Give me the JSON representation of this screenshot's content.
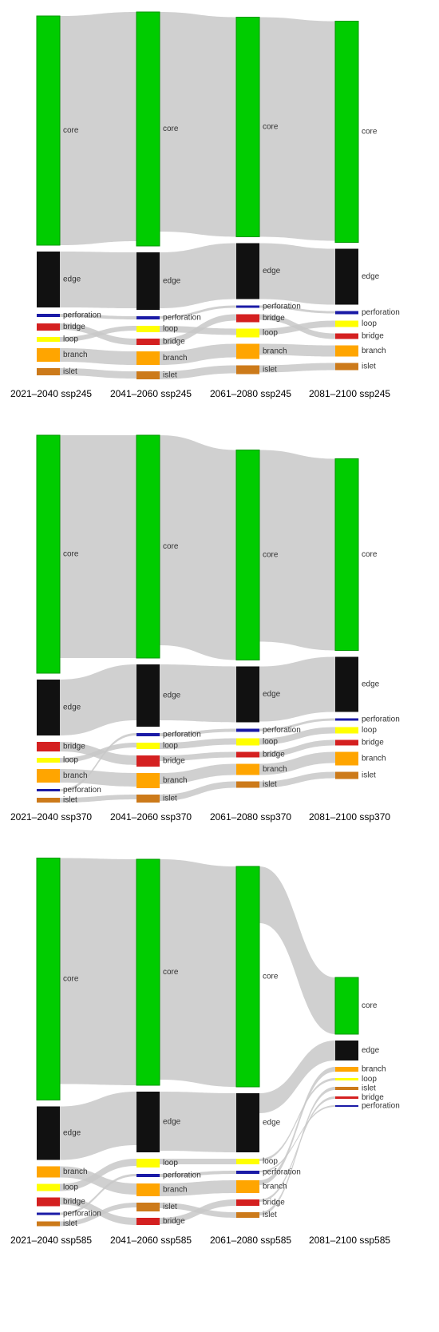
{
  "chart_data": [
    {
      "type": "alluvial",
      "colors": {
        "core": "#00cc00",
        "edge": "#111111",
        "perforation": "#1a1aa6",
        "bridge": "#d42020",
        "loop": "#ffff00",
        "branch": "#ffa500",
        "islet": "#cc7a1a"
      },
      "columns": [
        {
          "label": "2021–2040 ssp245",
          "nodes": [
            {
              "name": "core",
              "value": 287
            },
            {
              "name": "edge",
              "value": 70
            },
            {
              "name": "perforation",
              "value": 4
            },
            {
              "name": "bridge",
              "value": 9
            },
            {
              "name": "loop",
              "value": 6
            },
            {
              "name": "branch",
              "value": 17
            },
            {
              "name": "islet",
              "value": 9
            }
          ]
        },
        {
          "label": "2041–2060 ssp245",
          "nodes": [
            {
              "name": "core",
              "value": 293
            },
            {
              "name": "edge",
              "value": 72
            },
            {
              "name": "perforation",
              "value": 4
            },
            {
              "name": "loop",
              "value": 8
            },
            {
              "name": "bridge",
              "value": 8
            },
            {
              "name": "branch",
              "value": 17
            },
            {
              "name": "islet",
              "value": 10
            }
          ]
        },
        {
          "label": "2061–2080 ssp245",
          "nodes": [
            {
              "name": "core",
              "value": 275
            },
            {
              "name": "edge",
              "value": 70
            },
            {
              "name": "perforation",
              "value": 3
            },
            {
              "name": "bridge",
              "value": 10
            },
            {
              "name": "loop",
              "value": 11
            },
            {
              "name": "branch",
              "value": 19
            },
            {
              "name": "islet",
              "value": 11
            }
          ]
        },
        {
          "label": "2081–2100 ssp245",
          "nodes": [
            {
              "name": "core",
              "value": 277
            },
            {
              "name": "edge",
              "value": 70
            },
            {
              "name": "perforation",
              "value": 4
            },
            {
              "name": "loop",
              "value": 8
            },
            {
              "name": "bridge",
              "value": 7
            },
            {
              "name": "branch",
              "value": 14
            },
            {
              "name": "islet",
              "value": 9
            }
          ]
        }
      ]
    },
    {
      "type": "alluvial",
      "colors": {
        "core": "#00cc00",
        "edge": "#111111",
        "perforation": "#1a1aa6",
        "bridge": "#d42020",
        "loop": "#ffff00",
        "branch": "#ffa500",
        "islet": "#cc7a1a"
      },
      "columns": [
        {
          "label": "2021–2040 ssp370",
          "nodes": [
            {
              "name": "core",
              "value": 298
            },
            {
              "name": "edge",
              "value": 70
            },
            {
              "name": "bridge",
              "value": 12
            },
            {
              "name": "loop",
              "value": 6
            },
            {
              "name": "branch",
              "value": 17
            },
            {
              "name": "perforation",
              "value": 3
            },
            {
              "name": "islet",
              "value": 6
            }
          ]
        },
        {
          "label": "2041–2060 ssp370",
          "nodes": [
            {
              "name": "core",
              "value": 279
            },
            {
              "name": "edge",
              "value": 78
            },
            {
              "name": "perforation",
              "value": 4
            },
            {
              "name": "loop",
              "value": 8
            },
            {
              "name": "bridge",
              "value": 14
            },
            {
              "name": "branch",
              "value": 19
            },
            {
              "name": "islet",
              "value": 10
            }
          ]
        },
        {
          "label": "2061–2080 ssp370",
          "nodes": [
            {
              "name": "core",
              "value": 263
            },
            {
              "name": "edge",
              "value": 70
            },
            {
              "name": "perforation",
              "value": 4
            },
            {
              "name": "loop",
              "value": 9
            },
            {
              "name": "bridge",
              "value": 7
            },
            {
              "name": "branch",
              "value": 14
            },
            {
              "name": "islet",
              "value": 8
            }
          ]
        },
        {
          "label": "2081–2100 ssp370",
          "nodes": [
            {
              "name": "core",
              "value": 240
            },
            {
              "name": "edge",
              "value": 69
            },
            {
              "name": "perforation",
              "value": 3
            },
            {
              "name": "loop",
              "value": 8
            },
            {
              "name": "bridge",
              "value": 7
            },
            {
              "name": "branch",
              "value": 17
            },
            {
              "name": "islet",
              "value": 9
            }
          ]
        }
      ]
    },
    {
      "type": "alluvial",
      "colors": {
        "core": "#00cc00",
        "edge": "#111111",
        "perforation": "#1a1aa6",
        "bridge": "#d42020",
        "loop": "#ffff00",
        "branch": "#ffa500",
        "islet": "#cc7a1a"
      },
      "columns": [
        {
          "label": "2021–2040 ssp585",
          "nodes": [
            {
              "name": "core",
              "value": 303
            },
            {
              "name": "edge",
              "value": 67
            },
            {
              "name": "branch",
              "value": 14
            },
            {
              "name": "loop",
              "value": 9
            },
            {
              "name": "bridge",
              "value": 11
            },
            {
              "name": "perforation",
              "value": 3
            },
            {
              "name": "islet",
              "value": 6
            }
          ]
        },
        {
          "label": "2041–2060 ssp585",
          "nodes": [
            {
              "name": "core",
              "value": 283
            },
            {
              "name": "edge",
              "value": 76
            },
            {
              "name": "loop",
              "value": 11
            },
            {
              "name": "perforation",
              "value": 4
            },
            {
              "name": "branch",
              "value": 16
            },
            {
              "name": "islet",
              "value": 11
            },
            {
              "name": "bridge",
              "value": 9
            }
          ]
        },
        {
          "label": "2061–2080 ssp585",
          "nodes": [
            {
              "name": "core",
              "value": 276
            },
            {
              "name": "edge",
              "value": 74
            },
            {
              "name": "loop",
              "value": 7
            },
            {
              "name": "perforation",
              "value": 4
            },
            {
              "name": "branch",
              "value": 16
            },
            {
              "name": "bridge",
              "value": 8
            },
            {
              "name": "islet",
              "value": 7
            }
          ]
        },
        {
          "label": "2081–2100 ssp585",
          "nodes": [
            {
              "name": "core",
              "value": 71
            },
            {
              "name": "edge",
              "value": 25
            },
            {
              "name": "branch",
              "value": 6
            },
            {
              "name": "loop",
              "value": 3
            },
            {
              "name": "islet",
              "value": 4
            },
            {
              "name": "bridge",
              "value": 3
            },
            {
              "name": "perforation",
              "value": 2
            }
          ]
        }
      ]
    }
  ]
}
